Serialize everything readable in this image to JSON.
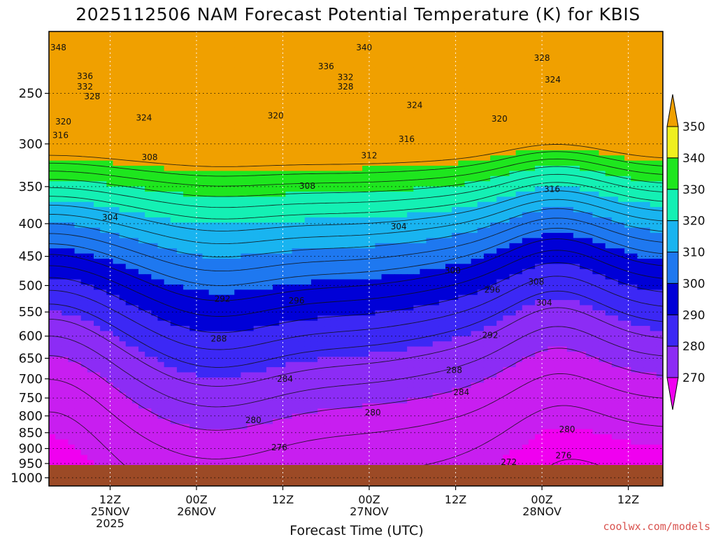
{
  "chart_data": {
    "type": "heatmap",
    "title": "2025112506 NAM Forecast Potential Temperature (K) for KBIS",
    "xlabel": "Forecast Time (UTC)",
    "ylabel": "",
    "credit": "coolwx.com/models",
    "y_axis": {
      "scale": "log",
      "range": [
        1030,
        200
      ],
      "ticks": [
        250,
        300,
        350,
        400,
        450,
        500,
        550,
        600,
        650,
        700,
        750,
        800,
        850,
        900,
        950,
        1000
      ]
    },
    "x_axis": {
      "ticks": [
        {
          "hour": 6,
          "lines": [
            "12Z",
            "25NOV",
            "2025"
          ]
        },
        {
          "hour": 18,
          "lines": [
            "00Z",
            "26NOV"
          ]
        },
        {
          "hour": 30,
          "lines": [
            "12Z"
          ]
        },
        {
          "hour": 42,
          "lines": [
            "00Z",
            "27NOV"
          ]
        },
        {
          "hour": 54,
          "lines": [
            "12Z"
          ]
        },
        {
          "hour": 66,
          "lines": [
            "00Z",
            "28NOV"
          ]
        },
        {
          "hour": 78,
          "lines": [
            "12Z"
          ]
        }
      ]
    },
    "ground_level_hPa": 955,
    "colorbar": {
      "levels": [
        270,
        280,
        290,
        300,
        310,
        320,
        330,
        340,
        350
      ],
      "colors": [
        "#f000f0",
        "#c81ef0",
        "#8c2cf5",
        "#3c28f5",
        "#0000d7",
        "#1e78f0",
        "#19b4f0",
        "#14f0b4",
        "#1ee61e",
        "#f0f01e",
        "#f0a000"
      ]
    },
    "contour_labels": [
      {
        "value": "348",
        "hour": -1.2,
        "p": 212
      },
      {
        "value": "336",
        "hour": 2.5,
        "p": 235
      },
      {
        "value": "332",
        "hour": 2.5,
        "p": 244
      },
      {
        "value": "328",
        "hour": 3.5,
        "p": 253
      },
      {
        "value": "320",
        "hour": -0.5,
        "p": 277
      },
      {
        "value": "316",
        "hour": -0.9,
        "p": 291
      },
      {
        "value": "324",
        "hour": 10.7,
        "p": 273
      },
      {
        "value": "308",
        "hour": 11.5,
        "p": 315
      },
      {
        "value": "304",
        "hour": 6.0,
        "p": 391
      },
      {
        "value": "340",
        "hour": 41.3,
        "p": 212
      },
      {
        "value": "336",
        "hour": 36.0,
        "p": 227
      },
      {
        "value": "332",
        "hour": 38.7,
        "p": 236
      },
      {
        "value": "328",
        "hour": 38.7,
        "p": 244
      },
      {
        "value": "324",
        "hour": 48.3,
        "p": 261
      },
      {
        "value": "320",
        "hour": 29.0,
        "p": 271
      },
      {
        "value": "316",
        "hour": 47.2,
        "p": 295
      },
      {
        "value": "312",
        "hour": 42.0,
        "p": 313
      },
      {
        "value": "308",
        "hour": 33.4,
        "p": 349
      },
      {
        "value": "304",
        "hour": 46.1,
        "p": 404
      },
      {
        "value": "328",
        "hour": 66.0,
        "p": 220
      },
      {
        "value": "324",
        "hour": 67.5,
        "p": 238
      },
      {
        "value": "320",
        "hour": 60.1,
        "p": 274
      },
      {
        "value": "316",
        "hour": 67.4,
        "p": 353
      },
      {
        "value": "300",
        "hour": 53.6,
        "p": 474
      },
      {
        "value": "296",
        "hour": 59.1,
        "p": 508
      },
      {
        "value": "308",
        "hour": 65.2,
        "p": 493
      },
      {
        "value": "304",
        "hour": 66.3,
        "p": 532
      },
      {
        "value": "292",
        "hour": 21.6,
        "p": 525
      },
      {
        "value": "296",
        "hour": 31.9,
        "p": 528
      },
      {
        "value": "292",
        "hour": 58.8,
        "p": 598
      },
      {
        "value": "288",
        "hour": 21.1,
        "p": 606
      },
      {
        "value": "288",
        "hour": 53.8,
        "p": 679
      },
      {
        "value": "284",
        "hour": 30.3,
        "p": 700
      },
      {
        "value": "284",
        "hour": 54.8,
        "p": 735
      },
      {
        "value": "280",
        "hour": 25.9,
        "p": 813
      },
      {
        "value": "280",
        "hour": 42.5,
        "p": 790
      },
      {
        "value": "280",
        "hour": 69.5,
        "p": 840
      },
      {
        "value": "276",
        "hour": 29.5,
        "p": 897
      },
      {
        "value": "276",
        "hour": 69.0,
        "p": 923
      },
      {
        "value": "272",
        "hour": 61.4,
        "p": 945
      }
    ]
  }
}
